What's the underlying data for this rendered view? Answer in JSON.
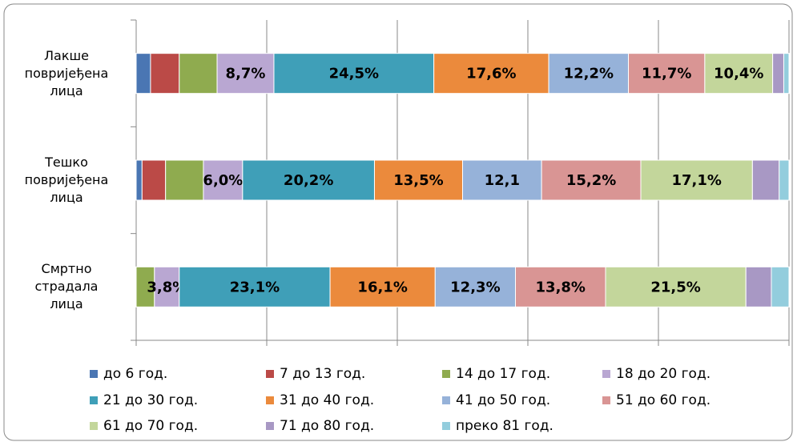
{
  "chart_data": {
    "type": "stacked_bar_horizontal",
    "categories": [
      "Лакше повријеђена лица",
      "Тешко повријеђена лица",
      "Смртно страдала лица"
    ],
    "series": [
      {
        "name": "до 6 год.",
        "color": "#4a76b3",
        "values": [
          2.2,
          0.9,
          0
        ]
      },
      {
        "name": "7 до 13 год.",
        "color": "#bb4a47",
        "values": [
          4.4,
          3.6,
          0
        ]
      },
      {
        "name": "14 до 17 год.",
        "color": "#8fab4f",
        "values": [
          5.8,
          5.8,
          2.8
        ]
      },
      {
        "name": "18 до 20 год.",
        "color": "#b9a7d2",
        "values": [
          8.7,
          6.0,
          3.8
        ],
        "value_labels": [
          "8,7%",
          "6,0%",
          "3,8%"
        ]
      },
      {
        "name": "21 до 30 год.",
        "color": "#3f9fb8",
        "values": [
          24.5,
          20.2,
          23.1
        ],
        "value_labels": [
          "24,5%",
          "20,2%",
          "23,1%"
        ]
      },
      {
        "name": "31 до 40 год.",
        "color": "#eb8a3c",
        "values": [
          17.6,
          13.5,
          16.1
        ],
        "value_labels": [
          "17,6%",
          "13,5%",
          "16,1%"
        ]
      },
      {
        "name": "41 до 50 год.",
        "color": "#96b2d9",
        "values": [
          12.2,
          12.1,
          12.3
        ],
        "value_labels": [
          "12,2%",
          "12,1",
          "12,3%"
        ]
      },
      {
        "name": "51 до 60 год.",
        "color": "#d99594",
        "values": [
          11.7,
          15.2,
          13.8
        ],
        "value_labels": [
          "11,7%",
          "15,2%",
          "13,8%"
        ]
      },
      {
        "name": "61 до 70 год.",
        "color": "#c3d69b",
        "values": [
          10.4,
          17.1,
          21.5
        ],
        "value_labels": [
          "10,4%",
          "17,1%",
          "21,5%"
        ]
      },
      {
        "name": "71 до 80 год.",
        "color": "#a898c4",
        "values": [
          1.7,
          4.1,
          3.9
        ]
      },
      {
        "name": "преко 81 год.",
        "color": "#93cddd",
        "values": [
          0.8,
          1.5,
          2.7
        ]
      }
    ],
    "xlim": [
      0,
      100
    ],
    "xticks": [
      0,
      20,
      40,
      60,
      80,
      100
    ],
    "grid": true,
    "legend": "bottom"
  }
}
